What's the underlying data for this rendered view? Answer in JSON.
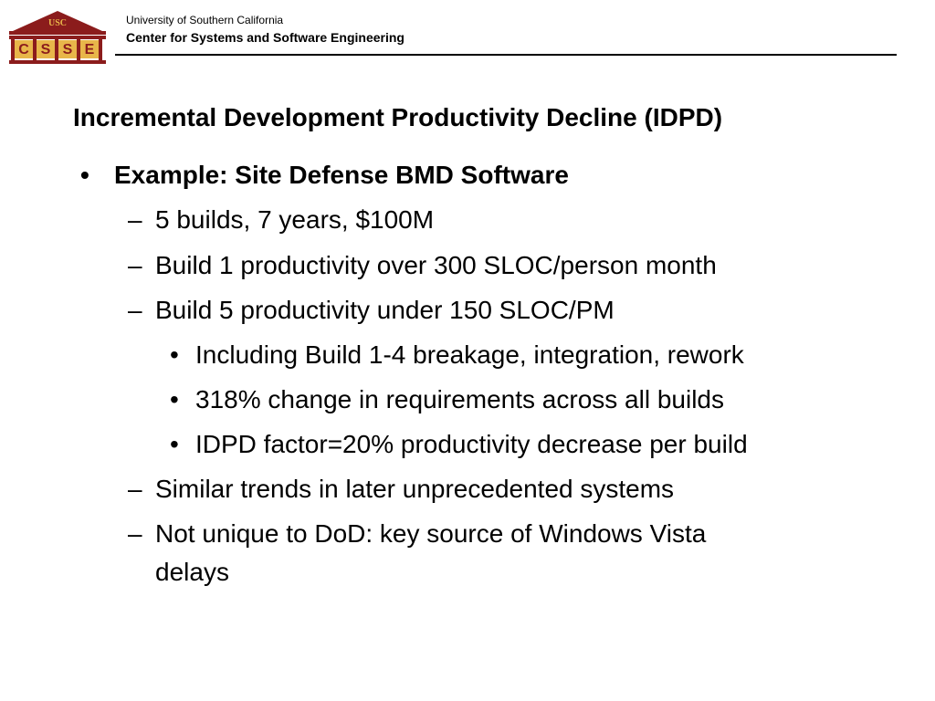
{
  "header": {
    "org_line_1": "University of Southern California",
    "org_line_2": "Center for Systems and Software Engineering",
    "logo": {
      "top_text": "USC",
      "letters": [
        "C",
        "S",
        "S",
        "E"
      ],
      "colors": {
        "maroon": "#8b1c1c",
        "gold": "#e8b64a"
      }
    }
  },
  "slide": {
    "title": "Incremental Development Productivity Decline (IDPD)",
    "bullets": [
      {
        "level": 1,
        "marker": "•",
        "text": "Example: Site Defense BMD Software"
      },
      {
        "level": 2,
        "marker": "–",
        "text": "5 builds, 7 years, $100M"
      },
      {
        "level": 2,
        "marker": "–",
        "text": "Build 1 productivity over 300 SLOC/person month"
      },
      {
        "level": 2,
        "marker": "–",
        "text": "Build 5 productivity under 150 SLOC/PM"
      },
      {
        "level": 3,
        "marker": "•",
        "text": "Including Build 1-4 breakage, integration, rework"
      },
      {
        "level": 3,
        "marker": "•",
        "text": "318% change in requirements across all builds"
      },
      {
        "level": 3,
        "marker": "•",
        "text": "IDPD factor=20% productivity decrease per build"
      },
      {
        "level": 2,
        "marker": "–",
        "text": "Similar trends in later unprecedented systems"
      },
      {
        "level": 2,
        "marker": "–",
        "text": "Not unique to DoD: key source of Windows Vista",
        "continuation": "delays"
      }
    ]
  }
}
